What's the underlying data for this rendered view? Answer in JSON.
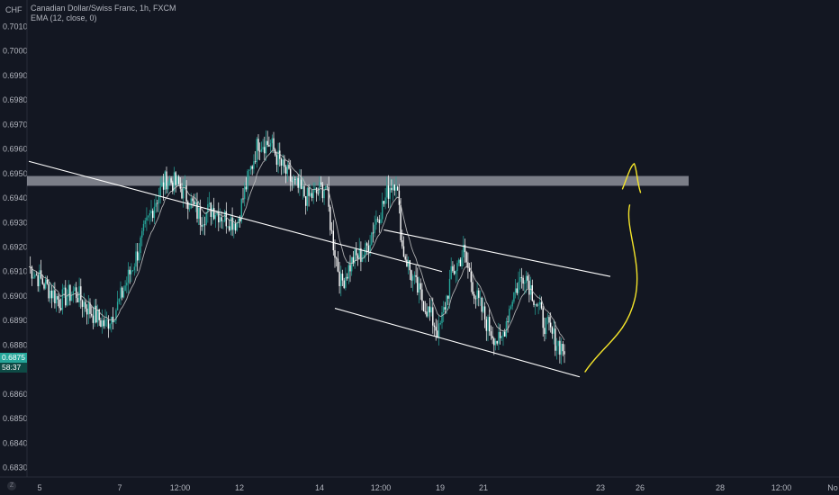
{
  "header": {
    "symbol_line": "Canadian Dollar/Swiss Franc, 1h, FXCM",
    "indicator_line": "EMA (12, close, 0)"
  },
  "price_axis": {
    "currency": "CHF",
    "current_price": "0.6875",
    "countdown": "58:37",
    "badge_color": "#26a69a",
    "countdown_color": "#0e4a45"
  },
  "colors": {
    "background": "#131722",
    "candle_up": "#26a69a",
    "candle_down": "#ffffff",
    "ema": "#c8c8c8",
    "trendline": "#ffffff",
    "zone": "#d1d4dc",
    "arrow": "#f5e52a"
  },
  "icons": {
    "timezone": "settings-circle-icon"
  },
  "chart_data": {
    "type": "candlestick",
    "title": "Canadian Dollar/Swiss Franc, 1h, FXCM",
    "y_ticks": [
      0.683,
      0.684,
      0.685,
      0.686,
      0.687,
      0.688,
      0.689,
      0.69,
      0.691,
      0.692,
      0.693,
      0.694,
      0.695,
      0.696,
      0.697,
      0.698,
      0.699,
      0.7,
      0.701
    ],
    "y_tick_labels": [
      "0.6830",
      "0.6840",
      "0.6850",
      "0.6860",
      "0.6870",
      "0.6880",
      "0.6890",
      "0.6900",
      "0.6910",
      "0.6920",
      "0.6930",
      "0.6940",
      "0.6950",
      "0.6960",
      "0.6970",
      "0.6980",
      "0.6990",
      "0.7000",
      "0.7010"
    ],
    "x_tick_labels": [
      "5",
      "7",
      "12:00",
      "12",
      "14",
      "12:00",
      "19",
      "21",
      "23",
      "26",
      "28",
      "12:00",
      "No"
    ],
    "grid": false,
    "price_path": [
      [
        0,
        0.6912
      ],
      [
        10,
        0.6905
      ],
      [
        20,
        0.6898
      ],
      [
        30,
        0.6902
      ],
      [
        40,
        0.6894
      ],
      [
        50,
        0.6888
      ],
      [
        58,
        0.6896
      ],
      [
        70,
        0.6916
      ],
      [
        82,
        0.6938
      ],
      [
        90,
        0.6948
      ],
      [
        98,
        0.6945
      ],
      [
        106,
        0.6938
      ],
      [
        112,
        0.6932
      ],
      [
        120,
        0.6936
      ],
      [
        128,
        0.6932
      ],
      [
        136,
        0.693
      ],
      [
        142,
        0.6945
      ],
      [
        150,
        0.6963
      ],
      [
        158,
        0.6962
      ],
      [
        166,
        0.6952
      ],
      [
        174,
        0.6945
      ],
      [
        182,
        0.694
      ],
      [
        188,
        0.6942
      ],
      [
        194,
        0.6945
      ],
      [
        198,
        0.6925
      ],
      [
        204,
        0.6905
      ],
      [
        212,
        0.6915
      ],
      [
        220,
        0.6918
      ],
      [
        226,
        0.693
      ],
      [
        232,
        0.6938
      ],
      [
        236,
        0.6945
      ],
      [
        240,
        0.6948
      ],
      [
        244,
        0.692
      ],
      [
        252,
        0.6905
      ],
      [
        260,
        0.6895
      ],
      [
        268,
        0.6885
      ],
      [
        276,
        0.6908
      ],
      [
        284,
        0.6918
      ],
      [
        292,
        0.69
      ],
      [
        300,
        0.6888
      ],
      [
        308,
        0.688
      ],
      [
        316,
        0.69
      ],
      [
        324,
        0.691
      ],
      [
        330,
        0.69
      ],
      [
        336,
        0.689
      ],
      [
        344,
        0.6882
      ],
      [
        350,
        0.6878
      ]
    ],
    "ema_period": 12,
    "resistance_zone": [
      0.6945,
      0.6949
    ],
    "descending_line": {
      "from": [
        0,
        0.6955
      ],
      "to": [
        270,
        0.691
      ]
    },
    "channel_upper": {
      "from": [
        232,
        0.6927
      ],
      "to": [
        380,
        0.6908
      ]
    },
    "channel_lower": {
      "from": [
        200,
        0.6895
      ],
      "to": [
        360,
        0.6867
      ]
    },
    "forecast_arrow": {
      "from": [
        360,
        0.6868
      ],
      "to": [
        395,
        0.695
      ]
    }
  }
}
